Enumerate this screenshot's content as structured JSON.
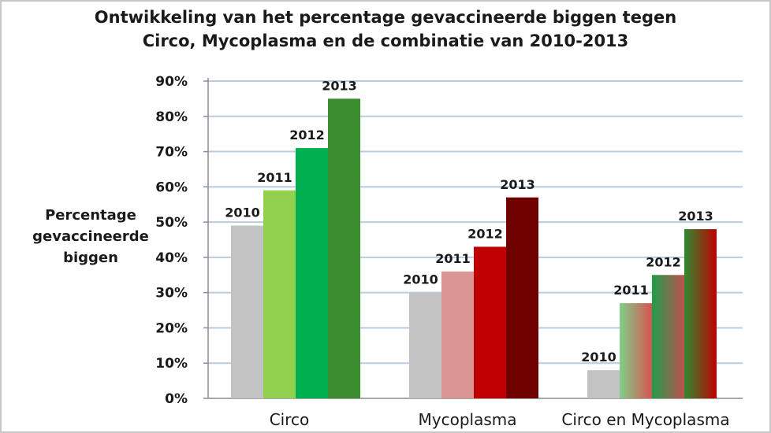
{
  "chart_data": {
    "type": "bar",
    "title_lines": [
      "Ontwikkeling  van het percentage gevaccineerde  biggen tegen",
      "Circo, Mycoplasma   en de combinatie van  2010-2013"
    ],
    "ylabel_lines": [
      "Percentage",
      "gevaccineerde",
      "biggen"
    ],
    "xlabel": "",
    "ylim": [
      0,
      90
    ],
    "yticks": [
      0,
      10,
      20,
      30,
      40,
      50,
      60,
      70,
      80,
      90
    ],
    "ytick_format": "%",
    "grid": true,
    "categories": [
      "Circo",
      "Mycoplasma",
      "Circo en Mycoplasma"
    ],
    "series": [
      {
        "name": "2010",
        "values": [
          49,
          30,
          8
        ]
      },
      {
        "name": "2011",
        "values": [
          59,
          36,
          27
        ]
      },
      {
        "name": "2012",
        "values": [
          71,
          43,
          35
        ]
      },
      {
        "name": "2013",
        "values": [
          85,
          57,
          48
        ]
      }
    ],
    "bar_colors": [
      [
        "#c3c3c3",
        "#92d050",
        "#00b050",
        "#3a8c2e"
      ],
      [
        "#c3c3c3",
        "#d99694",
        "#c00000",
        "#6e0000"
      ],
      [
        "#c3c3c3",
        "#3cb371",
        "#2e9e55",
        "#b00000"
      ]
    ],
    "bar_gradients": [
      [
        null,
        null,
        null,
        null
      ],
      [
        null,
        null,
        null,
        null
      ],
      [
        null,
        [
          "#7fd08a",
          "#d9534f"
        ],
        [
          "#1e9e4a",
          "#c0504d"
        ],
        [
          "#2e8b30",
          "#c00000"
        ]
      ]
    ]
  }
}
